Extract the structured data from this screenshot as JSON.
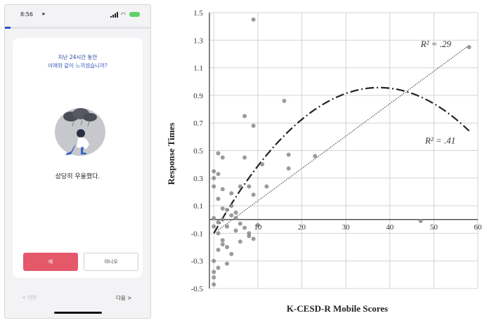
{
  "phone": {
    "status_time": "8:56",
    "progress_fraction": 0.04,
    "question_line1": "지난 24시간 동안",
    "question_line2": "아래와 같이 느끼셨습니까?",
    "answer_text": "상당히 우울했다.",
    "yes_label": "예",
    "no_label": "아니오",
    "prev_label": "< 이전",
    "next_label": "다음 >",
    "colors": {
      "accent": "#2f55c9",
      "yes_button": "#e5586a",
      "question_text": "#1f3f99"
    }
  },
  "chart_data": {
    "type": "scatter",
    "xlabel": "K-CESD-R Mobile Scores",
    "ylabel": "Response Times",
    "xlim": [
      -1,
      60
    ],
    "ylim": [
      -0.5,
      1.5
    ],
    "x_ticks": [
      10,
      20,
      30,
      40,
      50,
      60
    ],
    "x_tick_labels": [
      "10",
      "20",
      "30",
      "40",
      "50",
      "60"
    ],
    "y_ticks": [
      1.5,
      1.3,
      1.1,
      0.9,
      0.7,
      0.5,
      0.3,
      0.1,
      -0.1,
      -0.3,
      -0.5
    ],
    "y_tick_labels": [
      "1.5",
      "1.3",
      "1.1",
      "0.9",
      "0.7",
      "0.5",
      "0.3",
      "0.1",
      "-0.1",
      "-0.3",
      "-0.5"
    ],
    "grid": true,
    "annotations": [
      {
        "text": "R² = .29",
        "x": 47,
        "y": 1.25
      },
      {
        "text": "R² = .41",
        "x": 48,
        "y": 0.55
      }
    ],
    "points": [
      [
        9,
        1.45
      ],
      [
        58,
        1.25
      ],
      [
        16,
        0.86
      ],
      [
        7,
        0.75
      ],
      [
        9,
        0.68
      ],
      [
        23,
        0.46
      ],
      [
        17,
        0.47
      ],
      [
        17,
        0.37
      ],
      [
        11,
        0.4
      ],
      [
        7,
        0.45
      ],
      [
        12,
        0.24
      ],
      [
        8,
        0.24
      ],
      [
        6,
        0.24
      ],
      [
        9,
        0.18
      ],
      [
        4,
        0.19
      ],
      [
        1,
        0.48
      ],
      [
        2,
        0.45
      ],
      [
        0,
        0.3
      ],
      [
        0,
        0.35
      ],
      [
        1,
        0.15
      ],
      [
        2,
        0.22
      ],
      [
        3,
        0.07
      ],
      [
        4,
        0.03
      ],
      [
        5,
        0.01
      ],
      [
        6,
        -0.03
      ],
      [
        7,
        -0.06
      ],
      [
        8,
        -0.1
      ],
      [
        9,
        -0.14
      ],
      [
        10,
        -0.04
      ],
      [
        2,
        0.0
      ],
      [
        1,
        -0.02
      ],
      [
        0,
        0.01
      ],
      [
        0,
        -0.05
      ],
      [
        1,
        -0.1
      ],
      [
        2,
        -0.15
      ],
      [
        3,
        -0.2
      ],
      [
        4,
        -0.25
      ],
      [
        0,
        -0.3
      ],
      [
        1,
        -0.35
      ],
      [
        2,
        -0.18
      ],
      [
        3,
        -0.32
      ],
      [
        0,
        -0.42
      ],
      [
        0,
        -0.47
      ],
      [
        0,
        -0.38
      ],
      [
        1,
        -0.22
      ],
      [
        5,
        -0.08
      ],
      [
        6,
        -0.16
      ],
      [
        8,
        -0.12
      ],
      [
        3,
        -0.05
      ],
      [
        47,
        -0.01
      ],
      [
        0,
        0.24
      ],
      [
        1,
        0.33
      ],
      [
        2,
        0.08
      ],
      [
        4,
        0.1
      ],
      [
        5,
        0.05
      ]
    ],
    "linear_fit": {
      "intercept": -0.1,
      "slope": 0.0235
    },
    "quadratic_fit": {
      "coefficients": [
        -0.1,
        0.0563,
        -0.00075
      ]
    }
  }
}
